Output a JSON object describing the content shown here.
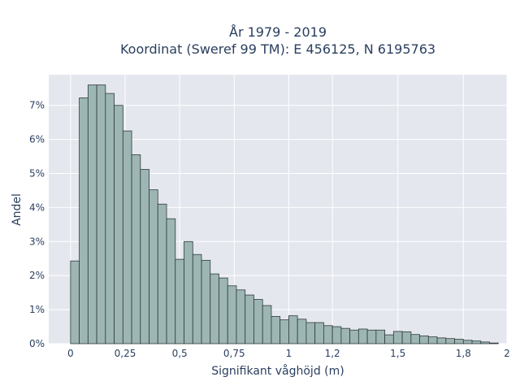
{
  "chart_data": {
    "type": "bar",
    "title_lines": [
      "År 1979 - 2019",
      "Koordinat (Sweref 99 TM): E 456125, N 6195763"
    ],
    "xlabel": "Signifikant våghöjd (m)",
    "ylabel": "Andel",
    "xlim": [
      -0.1,
      2.0
    ],
    "ylim": [
      0,
      0.079
    ],
    "bin_width": 0.04,
    "x_start": 0,
    "bar_color": "#9db6b4",
    "plot_bg": "#e5e7ef",
    "x_ticks": [
      {
        "value": 0,
        "label": "0"
      },
      {
        "value": 0.25,
        "label": "0,25"
      },
      {
        "value": 0.5,
        "label": "0,5"
      },
      {
        "value": 0.75,
        "label": "0,75"
      },
      {
        "value": 1,
        "label": "1"
      },
      {
        "value": 1.2,
        "label": "1,2"
      },
      {
        "value": 1.5,
        "label": "1,5"
      },
      {
        "value": 1.8,
        "label": "1,8"
      },
      {
        "value": 2,
        "label": "2"
      }
    ],
    "y_ticks": [
      {
        "value": 0,
        "label": "0%"
      },
      {
        "value": 0.01,
        "label": "1%"
      },
      {
        "value": 0.02,
        "label": "2%"
      },
      {
        "value": 0.03,
        "label": "3%"
      },
      {
        "value": 0.04,
        "label": "4%"
      },
      {
        "value": 0.05,
        "label": "5%"
      },
      {
        "value": 0.06,
        "label": "6%"
      },
      {
        "value": 0.07,
        "label": "7%"
      }
    ],
    "values": [
      0.0243,
      0.0722,
      0.076,
      0.076,
      0.0735,
      0.07,
      0.0625,
      0.0555,
      0.0512,
      0.0452,
      0.041,
      0.0367,
      0.0248,
      0.03,
      0.0262,
      0.0245,
      0.0205,
      0.0193,
      0.017,
      0.0158,
      0.0143,
      0.013,
      0.0112,
      0.008,
      0.007,
      0.0082,
      0.0072,
      0.0062,
      0.0062,
      0.0053,
      0.005,
      0.0045,
      0.004,
      0.0043,
      0.004,
      0.004,
      0.0026,
      0.0036,
      0.0035,
      0.0027,
      0.0023,
      0.002,
      0.0017,
      0.0015,
      0.0013,
      0.001,
      0.0008,
      0.0005,
      0.0002
    ]
  }
}
